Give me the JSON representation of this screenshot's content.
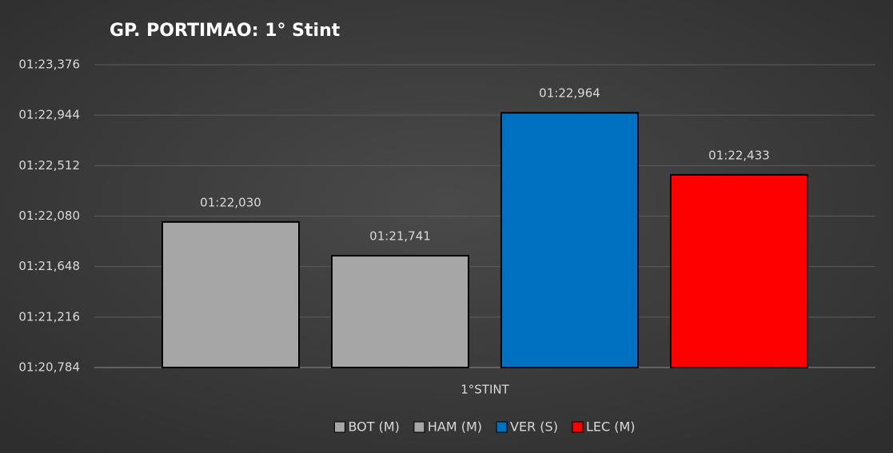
{
  "chart_data": {
    "type": "bar",
    "title": "GP. PORTIMAO: 1° Stint",
    "categories": [
      "1°STINT"
    ],
    "series": [
      {
        "name": "BOT (M)",
        "color": "#a6a6a6",
        "values": [
          82.03
        ],
        "value_labels": [
          "01:22,030"
        ]
      },
      {
        "name": "HAM (M)",
        "color": "#a6a6a6",
        "values": [
          81.741
        ],
        "value_labels": [
          "01:21,741"
        ]
      },
      {
        "name": "VER (S)",
        "color": "#0070c0",
        "values": [
          82.964
        ],
        "value_labels": [
          "01:22,964"
        ]
      },
      {
        "name": "LEC (M)",
        "color": "#ff0000",
        "values": [
          82.433
        ],
        "value_labels": [
          "01:22,433"
        ]
      }
    ],
    "ylim": [
      80.784,
      83.376
    ],
    "yticks": [
      {
        "value": 80.784,
        "label": "01:20,784"
      },
      {
        "value": 81.216,
        "label": "01:21,216"
      },
      {
        "value": 81.648,
        "label": "01:21,648"
      },
      {
        "value": 82.08,
        "label": "01:22,080"
      },
      {
        "value": 82.512,
        "label": "01:22,512"
      },
      {
        "value": 82.944,
        "label": "01:22,944"
      },
      {
        "value": 83.376,
        "label": "01:23,376"
      }
    ],
    "grid": true,
    "legend": "bottom"
  }
}
